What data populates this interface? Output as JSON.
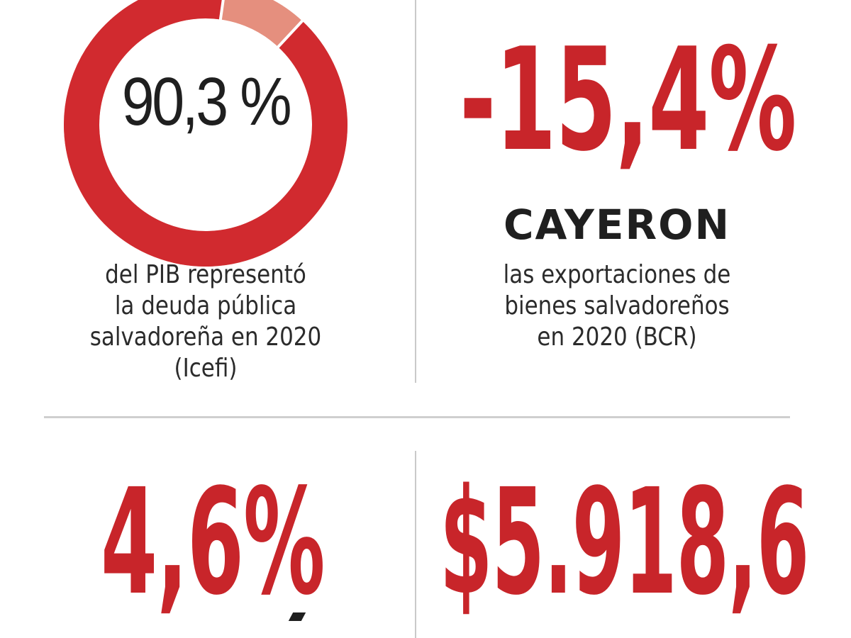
{
  "debt": {
    "value_label": "90,3 %",
    "percent": 90.3,
    "caption_lines": [
      "del PIB representó",
      "la deuda pública",
      "salvadoreña en 2020",
      "(Icefi)"
    ],
    "colors": {
      "main": "#d12a2f",
      "rest": "#e58f7e"
    }
  },
  "exports": {
    "value_label": "-15,4%",
    "headline": "CAYERON",
    "caption_lines": [
      "las exportaciones de",
      "bienes salvadoreños",
      "en 2020 (BCR)"
    ],
    "color": "#c8252a"
  },
  "bottom_left": {
    "value_label": "4,6%"
  },
  "bottom_right": {
    "value_label": "$5.918,6"
  }
}
